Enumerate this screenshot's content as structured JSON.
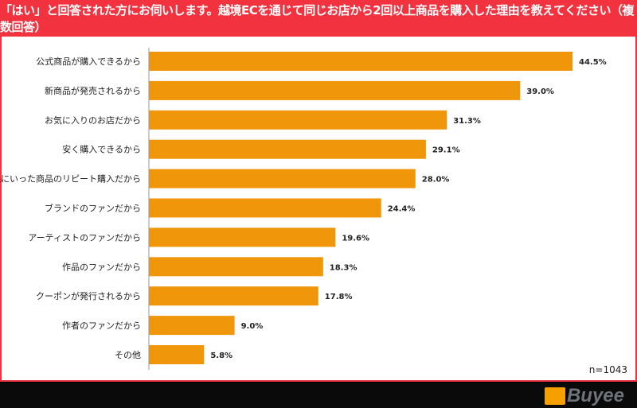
{
  "header": {
    "title": "「はい」と回答された方にお伺いします。越境ECを通じて同じお店から2回以上商品を購入した理由を教えてください（複数回答）"
  },
  "footer": {
    "logo": "Buyee"
  },
  "chart_data": {
    "type": "bar",
    "orientation": "horizontal",
    "title": "「はい」と回答された方にお伺いします。越境ECを通じて同じお店から2回以上商品を購入した理由を教えてください（複数回答）",
    "categories": [
      "公式商品が購入できるから",
      "新商品が発売されるから",
      "お気に入りのお店だから",
      "安く購入できるから",
      "気にいった商品のリピート購入だから",
      "ブランドのファンだから",
      "アーティストのファンだから",
      "作品のファンだから",
      "クーポンが発行されるから",
      "作者のファンだから",
      "その他"
    ],
    "values": [
      44.5,
      39.0,
      31.3,
      29.1,
      28.0,
      24.4,
      19.6,
      18.3,
      17.8,
      9.0,
      5.8
    ],
    "value_labels": [
      "44.5%",
      "39.0%",
      "31.3%",
      "29.1%",
      "28.0%",
      "24.4%",
      "19.6%",
      "18.3%",
      "17.8%",
      "9.0%",
      "5.8%"
    ],
    "note": "n=1043",
    "bar_color": "#f0960a",
    "xlim": [
      0,
      44.5
    ]
  }
}
